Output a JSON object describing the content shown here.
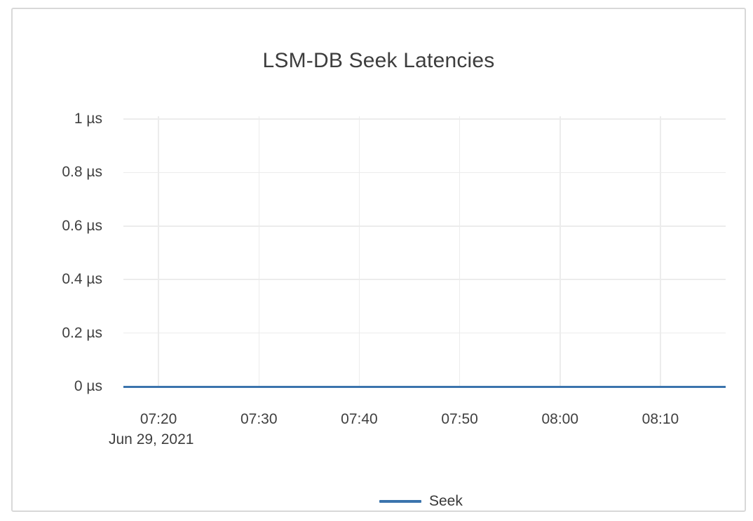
{
  "page": {
    "background_color": "#ffffff",
    "card_border_color": "#d8d8d8"
  },
  "chart_data": {
    "type": "line",
    "title": "LSM-DB Seek Latencies",
    "grid": true,
    "grid_color": "#ececec",
    "text_color": "#3f3f3f",
    "legend_position": "bottom",
    "x_axis": {
      "type": "time",
      "date_label": "Jun 29, 2021",
      "tick_labels": [
        "07:20",
        "07:30",
        "07:40",
        "07:50",
        "08:00",
        "08:10"
      ],
      "tick_minutes": [
        440,
        450,
        460,
        470,
        480,
        490
      ],
      "range_minutes": [
        436.5,
        496.5
      ]
    },
    "y_axis": {
      "unit": "µs",
      "tick_labels": [
        "0 µs",
        "0.2 µs",
        "0.4 µs",
        "0.6 µs",
        "0.8 µs",
        "1 µs"
      ],
      "tick_values": [
        0,
        0.2,
        0.4,
        0.6,
        0.8,
        1
      ],
      "range": [
        0,
        1
      ]
    },
    "series": [
      {
        "name": "Seek",
        "color": "#3b74ad",
        "description": "constant 0 µs across entire visible window",
        "points": [
          {
            "x_minutes": 436.5,
            "y": 0
          },
          {
            "x_minutes": 496.5,
            "y": 0
          }
        ]
      }
    ]
  }
}
